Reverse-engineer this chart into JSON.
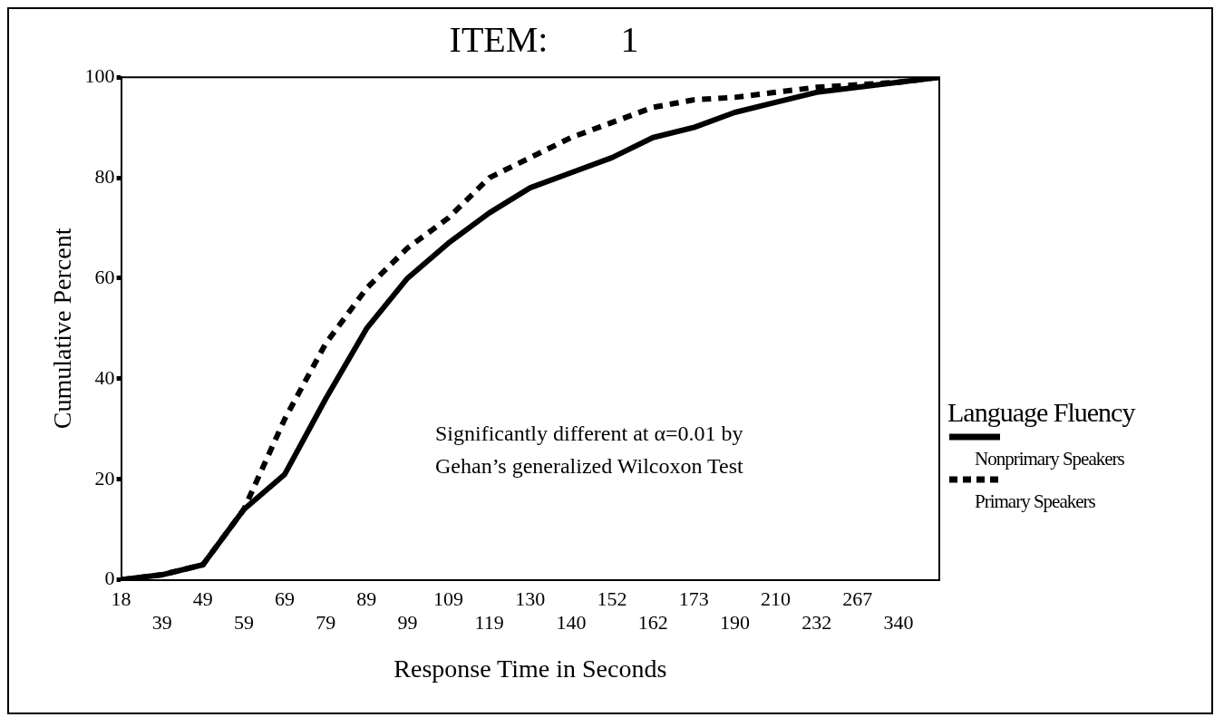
{
  "chart_data": {
    "type": "line",
    "title": "ITEM:        1",
    "xlabel": "Response Time in Seconds",
    "ylabel": "Cumulative Percent",
    "legend_title": "Language Fluency",
    "legend": "right",
    "grid": false,
    "marker": "none",
    "categories": [
      "18",
      "39",
      "49",
      "59",
      "69",
      "79",
      "89",
      "99",
      "109",
      "119",
      "130",
      "140",
      "152",
      "162",
      "173",
      "190",
      "210",
      "232",
      "267",
      "340",
      null
    ],
    "ylim": [
      0,
      100
    ],
    "yticks": [
      0,
      20,
      40,
      60,
      80,
      100
    ],
    "series": [
      {
        "name": "Nonprimary Speakers",
        "color": "#000000",
        "line_style": "solid",
        "values": [
          0,
          1,
          3,
          14,
          21,
          36,
          50,
          60,
          67,
          73,
          78,
          81,
          84,
          88,
          90,
          93,
          95,
          97,
          98,
          99,
          100
        ]
      },
      {
        "name": "Primary Speakers",
        "color": "#000000",
        "line_style": "dashed",
        "values": [
          0,
          1,
          3,
          14,
          32,
          47,
          58,
          66,
          72,
          80,
          84,
          88,
          91,
          94,
          95.5,
          96,
          97,
          98,
          98.5,
          99,
          100
        ]
      }
    ],
    "annotations": [
      "Significantly different at α=0.01 by Gehan’s generalized Wilcoxon Test"
    ]
  }
}
